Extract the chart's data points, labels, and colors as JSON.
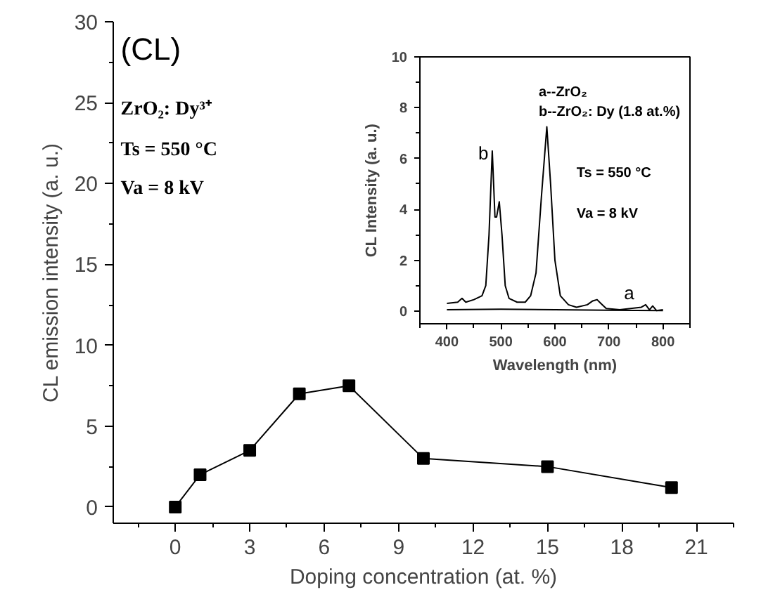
{
  "chart_data": [
    {
      "type": "line",
      "xlabel": "Doping concentration (at. %)",
      "ylabel": "CL emission intensity (a. u.)",
      "x": [
        0,
        1,
        3,
        5,
        7,
        10,
        15,
        20
      ],
      "series": [
        {
          "color": "#000000",
          "values": [
            0,
            2,
            3.5,
            7,
            7.5,
            3,
            2.5,
            1.2
          ]
        }
      ],
      "xlim": [
        -2.5,
        22.5
      ],
      "xticks": [
        0,
        3,
        6,
        9,
        12,
        15,
        18,
        21
      ],
      "ylim": [
        -1,
        30
      ],
      "yticks": [
        0,
        5,
        10,
        15,
        20,
        25,
        30
      ],
      "marker": "square",
      "line_style": "solid",
      "grid": false,
      "annotations": [
        "(CL)",
        "ZrO₂: Dy³⁺",
        "Ts = 550 °C",
        "Va = 8 kV"
      ]
    },
    {
      "type": "line",
      "xlabel": "Wavelength (nm)",
      "ylabel": "CL Intensity (a. u.)",
      "series": [
        {
          "name": "a",
          "color": "#000000",
          "x": [
            400,
            500,
            600,
            700,
            800
          ],
          "values": [
            0.05,
            0.07,
            0.05,
            0.03,
            0.02
          ]
        },
        {
          "name": "b",
          "color": "#000000",
          "x": [
            400,
            420,
            428,
            435,
            450,
            465,
            472,
            478,
            484,
            489,
            492,
            497,
            502,
            508,
            515,
            530,
            545,
            555,
            565,
            575,
            585,
            592,
            600,
            610,
            625,
            640,
            660,
            670,
            678,
            685,
            695,
            720,
            760,
            768,
            775,
            781,
            788,
            800
          ],
          "values": [
            0.3,
            0.35,
            0.5,
            0.35,
            0.45,
            0.6,
            1.0,
            3,
            6.3,
            3.7,
            3.7,
            4.3,
            3,
            1,
            0.5,
            0.35,
            0.35,
            0.6,
            1.5,
            4.5,
            7.25,
            5,
            2,
            0.6,
            0.25,
            0.15,
            0.25,
            0.4,
            0.45,
            0.3,
            0.1,
            0.05,
            0.15,
            0.25,
            0.05,
            0.2,
            0.02,
            0.05
          ]
        }
      ],
      "xlim": [
        350,
        850
      ],
      "xticks": [
        400,
        500,
        600,
        700,
        800
      ],
      "ylim": [
        -0.5,
        10
      ],
      "yticks": [
        0,
        2,
        4,
        6,
        8,
        10
      ],
      "marker": "none",
      "line_style": "solid",
      "grid": false,
      "annotations": [
        "a--ZrO₂",
        "b--ZrO₂: Dy (1.8 at.%)",
        "Ts = 550 °C",
        "Va = 8 kV"
      ]
    }
  ]
}
